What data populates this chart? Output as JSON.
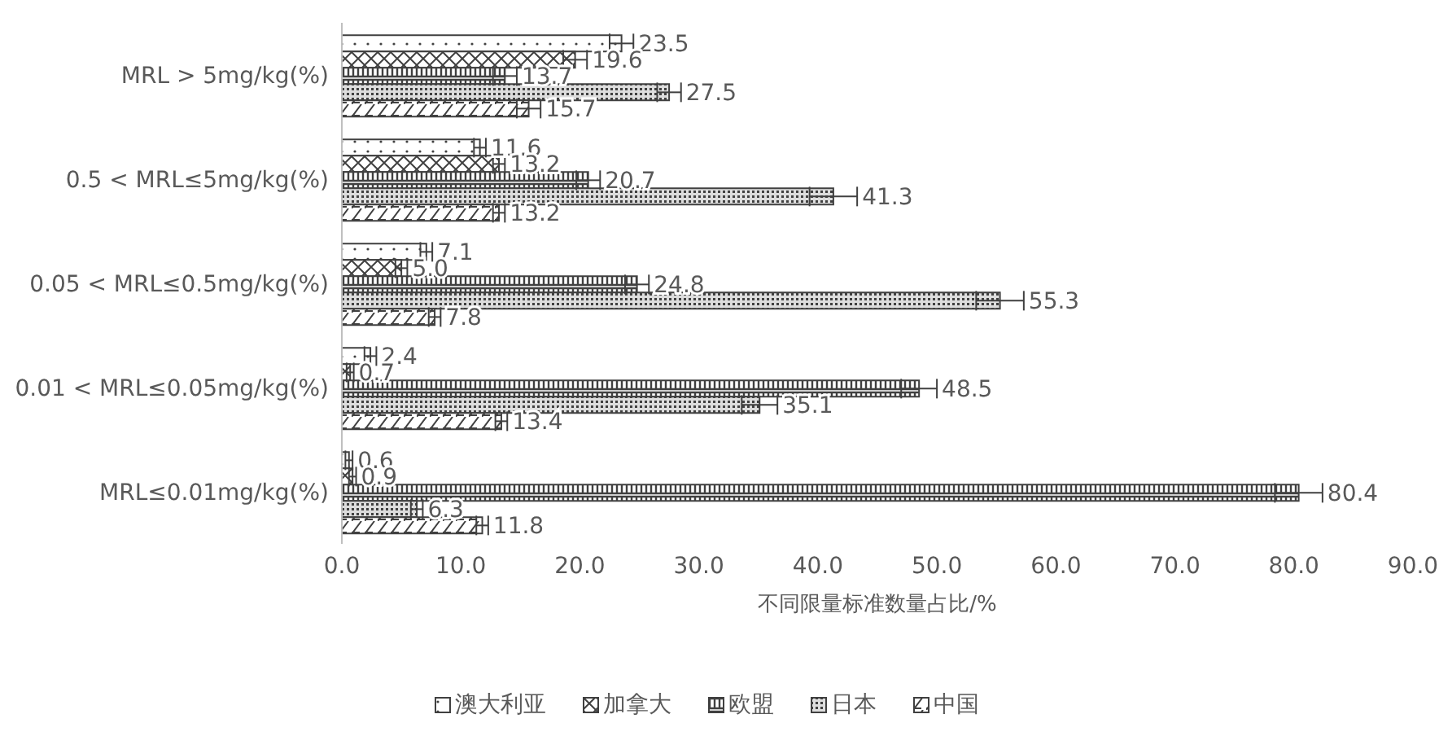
{
  "chart_data": {
    "type": "bar",
    "orientation": "horizontal",
    "xlabel": "不同限量标准数量占比/%",
    "categories": [
      "MRL > 5mg/kg(%)",
      "0.5 < MRL≤5mg/kg(%)",
      "0.05 < MRL≤0.5mg/kg(%)",
      "0.01 < MRL≤0.05mg/kg(%)",
      "MRL≤0.01mg/kg(%)"
    ],
    "series": [
      {
        "name": "澳大利亚",
        "color": "#404040",
        "values": [
          23.5,
          11.6,
          7.1,
          2.4,
          0.6
        ],
        "errors": [
          1,
          0.5,
          0.5,
          0.5,
          0.3
        ],
        "value_labels": [
          "23.5",
          "11.6",
          "7.1",
          "2.4",
          "0.6"
        ]
      },
      {
        "name": "加拿大",
        "color": "#404040",
        "values": [
          19.6,
          13.2,
          5.0,
          0.7,
          0.9
        ],
        "errors": [
          1,
          0.5,
          0.5,
          0.3,
          0.3
        ],
        "value_labels": [
          "19.6",
          "13.2",
          "5.0",
          "0.7",
          "0.9"
        ]
      },
      {
        "name": "欧盟",
        "color": "#404040",
        "values": [
          13.7,
          20.7,
          24.8,
          48.5,
          80.4
        ],
        "errors": [
          1,
          1,
          1,
          1.5,
          2
        ],
        "value_labels": [
          "13.7",
          "20.7",
          "24.8",
          "48.5",
          "80.4"
        ]
      },
      {
        "name": "日本",
        "color": "#404040",
        "values": [
          27.5,
          41.3,
          55.3,
          35.1,
          6.3
        ],
        "errors": [
          1,
          2,
          2,
          1.5,
          0.5
        ],
        "value_labels": [
          "27.5",
          "41.3",
          "55.3",
          "35.1",
          "6.3"
        ]
      },
      {
        "name": "中国",
        "color": "#404040",
        "values": [
          15.7,
          13.2,
          7.8,
          13.4,
          11.8
        ],
        "errors": [
          1,
          0.5,
          0.5,
          0.5,
          0.5
        ],
        "value_labels": [
          "15.7",
          "13.2",
          "7.8",
          "13.4",
          "11.8"
        ]
      }
    ],
    "xlim": [
      0,
      90
    ],
    "xticks": [
      {
        "value": 0,
        "label": "0.0"
      },
      {
        "value": 10,
        "label": "10.0"
      },
      {
        "value": 20,
        "label": "20.0"
      },
      {
        "value": 30,
        "label": "30.0"
      },
      {
        "value": 40,
        "label": "40.0"
      },
      {
        "value": 50,
        "label": "50.0"
      },
      {
        "value": 60,
        "label": "60.0"
      },
      {
        "value": 70,
        "label": "70.0"
      },
      {
        "value": 80,
        "label": "80.0"
      },
      {
        "value": 90,
        "label": "90.0"
      }
    ],
    "grid": false,
    "legend": "bottom"
  }
}
